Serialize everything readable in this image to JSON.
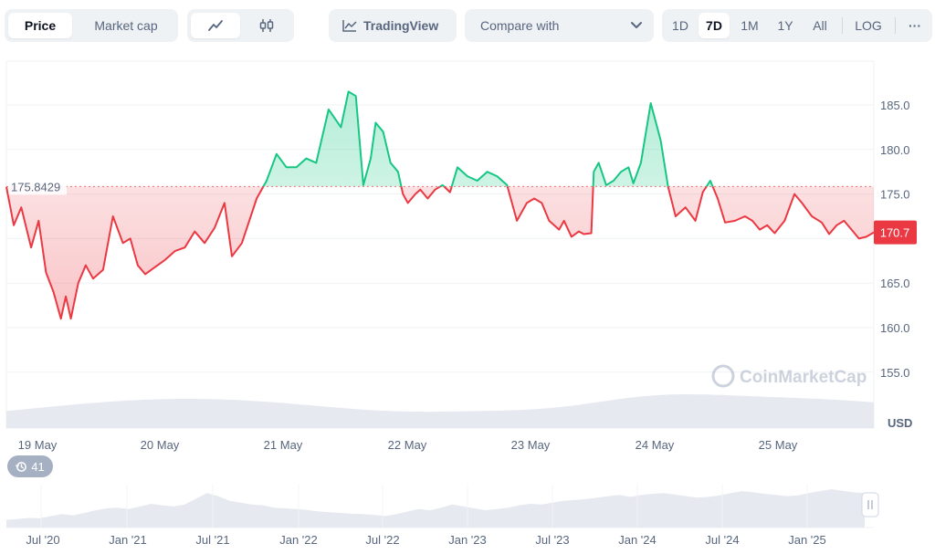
{
  "toolbar": {
    "tabs": [
      {
        "label": "Price",
        "active": true
      },
      {
        "label": "Market cap",
        "active": false
      }
    ],
    "chart_types": [
      {
        "icon": "line-chart-icon",
        "active": true
      },
      {
        "icon": "candlestick-icon",
        "active": false
      }
    ],
    "tradingview_label": "TradingView",
    "compare_label": "Compare with",
    "ranges": [
      {
        "label": "1D",
        "active": false
      },
      {
        "label": "7D",
        "active": true
      },
      {
        "label": "1M",
        "active": false
      },
      {
        "label": "1Y",
        "active": false
      },
      {
        "label": "All",
        "active": false
      }
    ],
    "log_label": "LOG",
    "more_label": "···"
  },
  "chart_data": {
    "type": "line",
    "baseline": 175.8429,
    "baseline_label": "175.8429",
    "current_price_label": "170.7",
    "current_price": 170.7,
    "y_ticks": [
      "185.0",
      "180.0",
      "175.0",
      "170.0",
      "165.0",
      "160.0",
      "155.0"
    ],
    "y_tick_values": [
      185,
      180,
      175,
      170,
      165,
      160,
      155
    ],
    "ylim": [
      151,
      190
    ],
    "currency_label": "USD",
    "x_ticks": [
      "19 May",
      "20 May",
      "21 May",
      "22 May",
      "23 May",
      "24 May",
      "25 May"
    ],
    "watermark": "CoinMarketCap",
    "series": [
      {
        "x_day": [
          0,
          0.06,
          0.12,
          0.2,
          0.26,
          0.32,
          0.38,
          0.44,
          0.48,
          0.52,
          0.58,
          0.64,
          0.7,
          0.78,
          0.86,
          0.94,
          1.0,
          1.06,
          1.12,
          1.2,
          1.28,
          1.36,
          1.44,
          1.52,
          1.6,
          1.68,
          1.76,
          1.82,
          1.9,
          1.96,
          2.02,
          2.1,
          2.18,
          2.26,
          2.34,
          2.42,
          2.5,
          2.6,
          2.7,
          2.76,
          2.82,
          2.88,
          2.94,
          2.98,
          3.04,
          3.1,
          3.16,
          3.2,
          3.24,
          3.3,
          3.34,
          3.4,
          3.46,
          3.52,
          3.58,
          3.64,
          3.72,
          3.8,
          3.88,
          3.96,
          4.04,
          4.12,
          4.2,
          4.26,
          4.32,
          4.38,
          4.42,
          4.46,
          4.5,
          4.56,
          4.62,
          4.66,
          4.72,
          4.74,
          4.78,
          4.84,
          4.9,
          4.96,
          5.02,
          5.06,
          5.12,
          5.2,
          5.28,
          5.34,
          5.4,
          5.48,
          5.56,
          5.62,
          5.68,
          5.74,
          5.8,
          5.88,
          5.96,
          6.02,
          6.08,
          6.14,
          6.2,
          6.28,
          6.36,
          6.42,
          6.5,
          6.58,
          6.64,
          6.7,
          6.76,
          6.82,
          6.88,
          6.94,
          7.0
        ],
        "price": [
          175.8,
          171.5,
          173.5,
          169.0,
          172.0,
          166.2,
          164.0,
          161.0,
          163.5,
          161.0,
          165.0,
          167.0,
          165.5,
          166.5,
          172.5,
          169.5,
          170.0,
          167.0,
          166.0,
          166.8,
          167.6,
          168.6,
          169.0,
          170.8,
          169.5,
          171.2,
          174.0,
          168.0,
          169.5,
          172.0,
          174.5,
          176.5,
          179.5,
          178.0,
          178.0,
          179.0,
          178.5,
          184.5,
          182.5,
          186.5,
          186.0,
          176.0,
          179.0,
          183.0,
          182.0,
          178.5,
          177.5,
          175.0,
          174.0,
          175.0,
          175.5,
          174.5,
          175.5,
          176.0,
          175.2,
          178.0,
          177.0,
          176.5,
          177.5,
          177.0,
          176.0,
          172.0,
          174.0,
          174.5,
          174.0,
          172.0,
          171.5,
          171.0,
          172.0,
          170.2,
          170.8,
          170.5,
          170.6,
          177.5,
          178.5,
          176.0,
          176.5,
          177.5,
          178.0,
          176.2,
          178.5,
          185.2,
          181.0,
          175.8,
          172.5,
          173.5,
          172.0,
          175.2,
          176.5,
          174.5,
          171.8,
          172.0,
          172.5,
          172.0,
          171.0,
          171.5,
          170.6,
          172.0,
          175.0,
          174.0,
          172.5,
          171.8,
          170.5,
          171.5,
          172.0,
          171.0,
          170.0,
          170.2,
          170.7
        ]
      }
    ]
  },
  "volume": {
    "label": "Volume"
  },
  "navigator": {
    "badge_count": "41",
    "x_ticks": [
      "Jul '20",
      "Jan '21",
      "Jul '21",
      "Jan '22",
      "Jul '22",
      "Jan '23",
      "Jul '23",
      "Jan '24",
      "Jul '24",
      "Jan '25"
    ],
    "history_values": [
      0.2,
      0.22,
      0.25,
      0.24,
      0.3,
      0.35,
      0.32,
      0.38,
      0.45,
      0.5,
      0.52,
      0.48,
      0.55,
      0.62,
      0.58,
      0.55,
      0.6,
      0.75,
      0.9,
      0.82,
      0.7,
      0.65,
      0.6,
      0.58,
      0.52,
      0.5,
      0.48,
      0.46,
      0.42,
      0.4,
      0.38,
      0.36,
      0.35,
      0.33,
      0.3,
      0.35,
      0.42,
      0.48,
      0.45,
      0.52,
      0.6,
      0.55,
      0.5,
      0.45,
      0.48,
      0.52,
      0.58,
      0.62,
      0.6,
      0.65,
      0.7,
      0.72,
      0.74,
      0.78,
      0.82,
      0.85,
      0.8,
      0.85,
      0.88,
      0.9,
      0.86,
      0.82,
      0.78,
      0.8,
      0.84,
      0.9,
      0.95,
      0.92,
      0.88,
      0.85,
      0.82,
      0.84,
      0.9,
      0.95,
      1.0,
      0.96,
      0.92,
      0.9
    ]
  }
}
